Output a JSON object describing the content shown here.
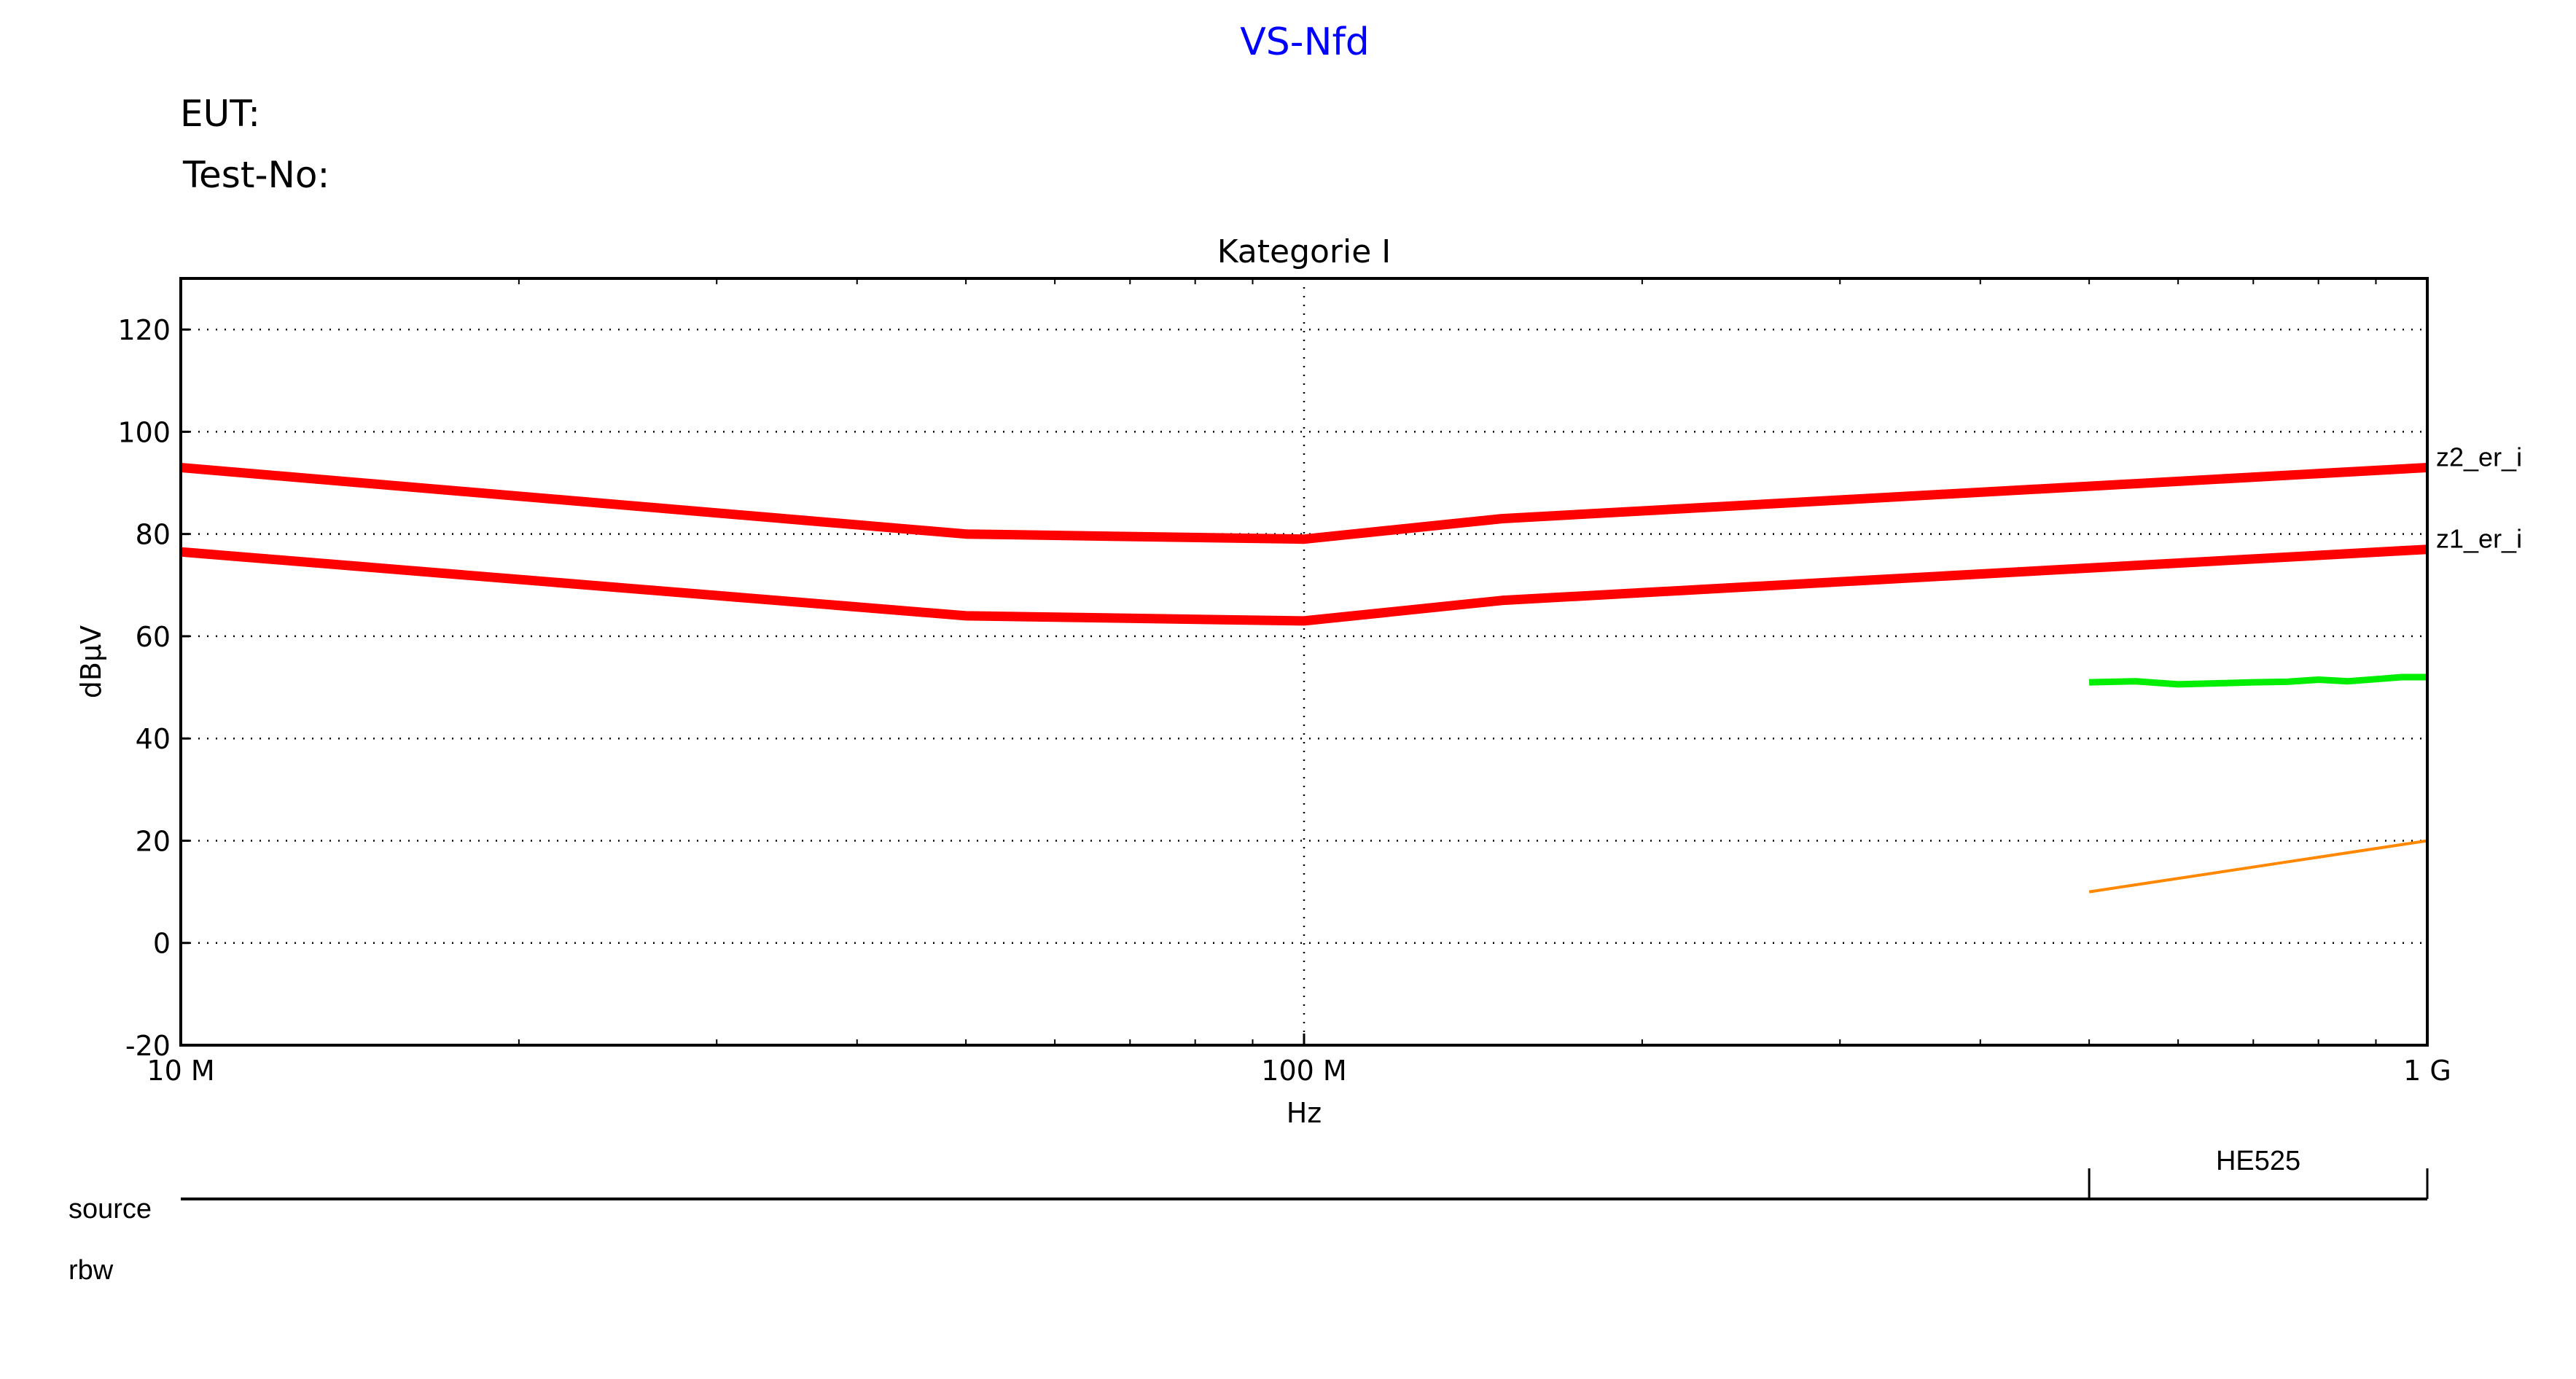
{
  "header": {
    "title": "VS-Nfd",
    "eut_label": "EUT:",
    "test_no_label": "Test-No:"
  },
  "chart_data": {
    "type": "line",
    "title": "Kategorie I",
    "xlabel": "Hz",
    "ylabel": "dBµV",
    "x_scale": "log",
    "xlim": [
      10000000,
      1000000000
    ],
    "ylim": [
      -20,
      130
    ],
    "x_ticks": [
      {
        "value": 10000000,
        "label": "10 M"
      },
      {
        "value": 100000000,
        "label": "100 M"
      },
      {
        "value": 1000000000,
        "label": "1 G"
      }
    ],
    "y_ticks": [
      -20,
      0,
      20,
      40,
      60,
      80,
      100,
      120
    ],
    "grid": true,
    "series": [
      {
        "name": "z2_er_i",
        "color": "#ff0000",
        "x": [
          10000000,
          50000000,
          100000000,
          150000000,
          1000000000
        ],
        "y": [
          93,
          80,
          79,
          83,
          93
        ]
      },
      {
        "name": "z1_er_i",
        "color": "#ff0000",
        "x": [
          10000000,
          50000000,
          100000000,
          150000000,
          1000000000
        ],
        "y": [
          76.5,
          64,
          63,
          67,
          77
        ]
      },
      {
        "color": "#00ee00",
        "x": [
          500000000,
          550000000,
          600000000,
          650000000,
          700000000,
          750000000,
          800000000,
          850000000,
          900000000,
          950000000,
          1000000000
        ],
        "y": [
          51,
          51.2,
          50.6,
          50.8,
          51,
          51.1,
          51.5,
          51.2,
          51.6,
          52,
          52
        ]
      },
      {
        "color": "#ff8800",
        "x": [
          500000000,
          1000000000
        ],
        "y": [
          10,
          20
        ]
      }
    ]
  },
  "source_bar": {
    "source_label": "source",
    "rbw_label": "rbw",
    "segments": [
      {
        "label": "HE525",
        "x_start": 500000000,
        "x_end": 1000000000
      }
    ]
  }
}
